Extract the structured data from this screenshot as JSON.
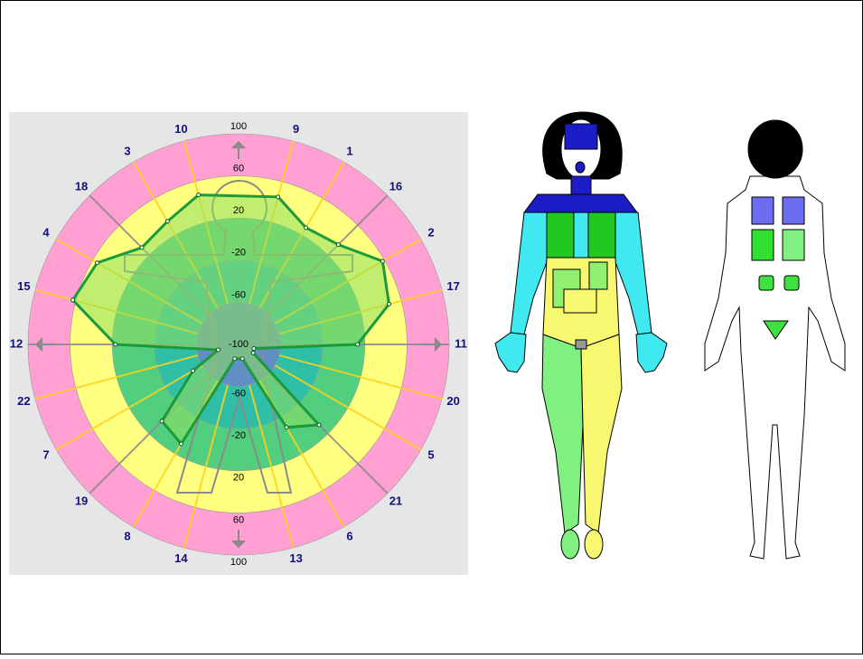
{
  "chart_data": {
    "type": "radar",
    "categories": [
      "9",
      "1",
      "16",
      "2",
      "17",
      "11",
      "20",
      "5",
      "21",
      "6",
      "13",
      "14",
      "8",
      "19",
      "7",
      "22",
      "12",
      "15",
      "4",
      "18",
      "3",
      "10"
    ],
    "series": [
      {
        "color": "#1a9a3a",
        "fill": "#90e060",
        "values": [
          45,
          28,
          34,
          58,
          48,
          13,
          -85,
          -84,
          8,
          -9,
          -86,
          -86,
          9,
          3,
          -50,
          -80,
          17,
          63,
          55,
          30,
          35,
          47
        ]
      }
    ],
    "ylim": [
      -100,
      100
    ],
    "yticks": [
      -100,
      -60,
      -20,
      20,
      60,
      100
    ],
    "ring_colors": [
      "#5f8fc4",
      "#2fbfa6",
      "#52cf7e",
      "#ffff80",
      "#ff9fd2"
    ]
  }
}
